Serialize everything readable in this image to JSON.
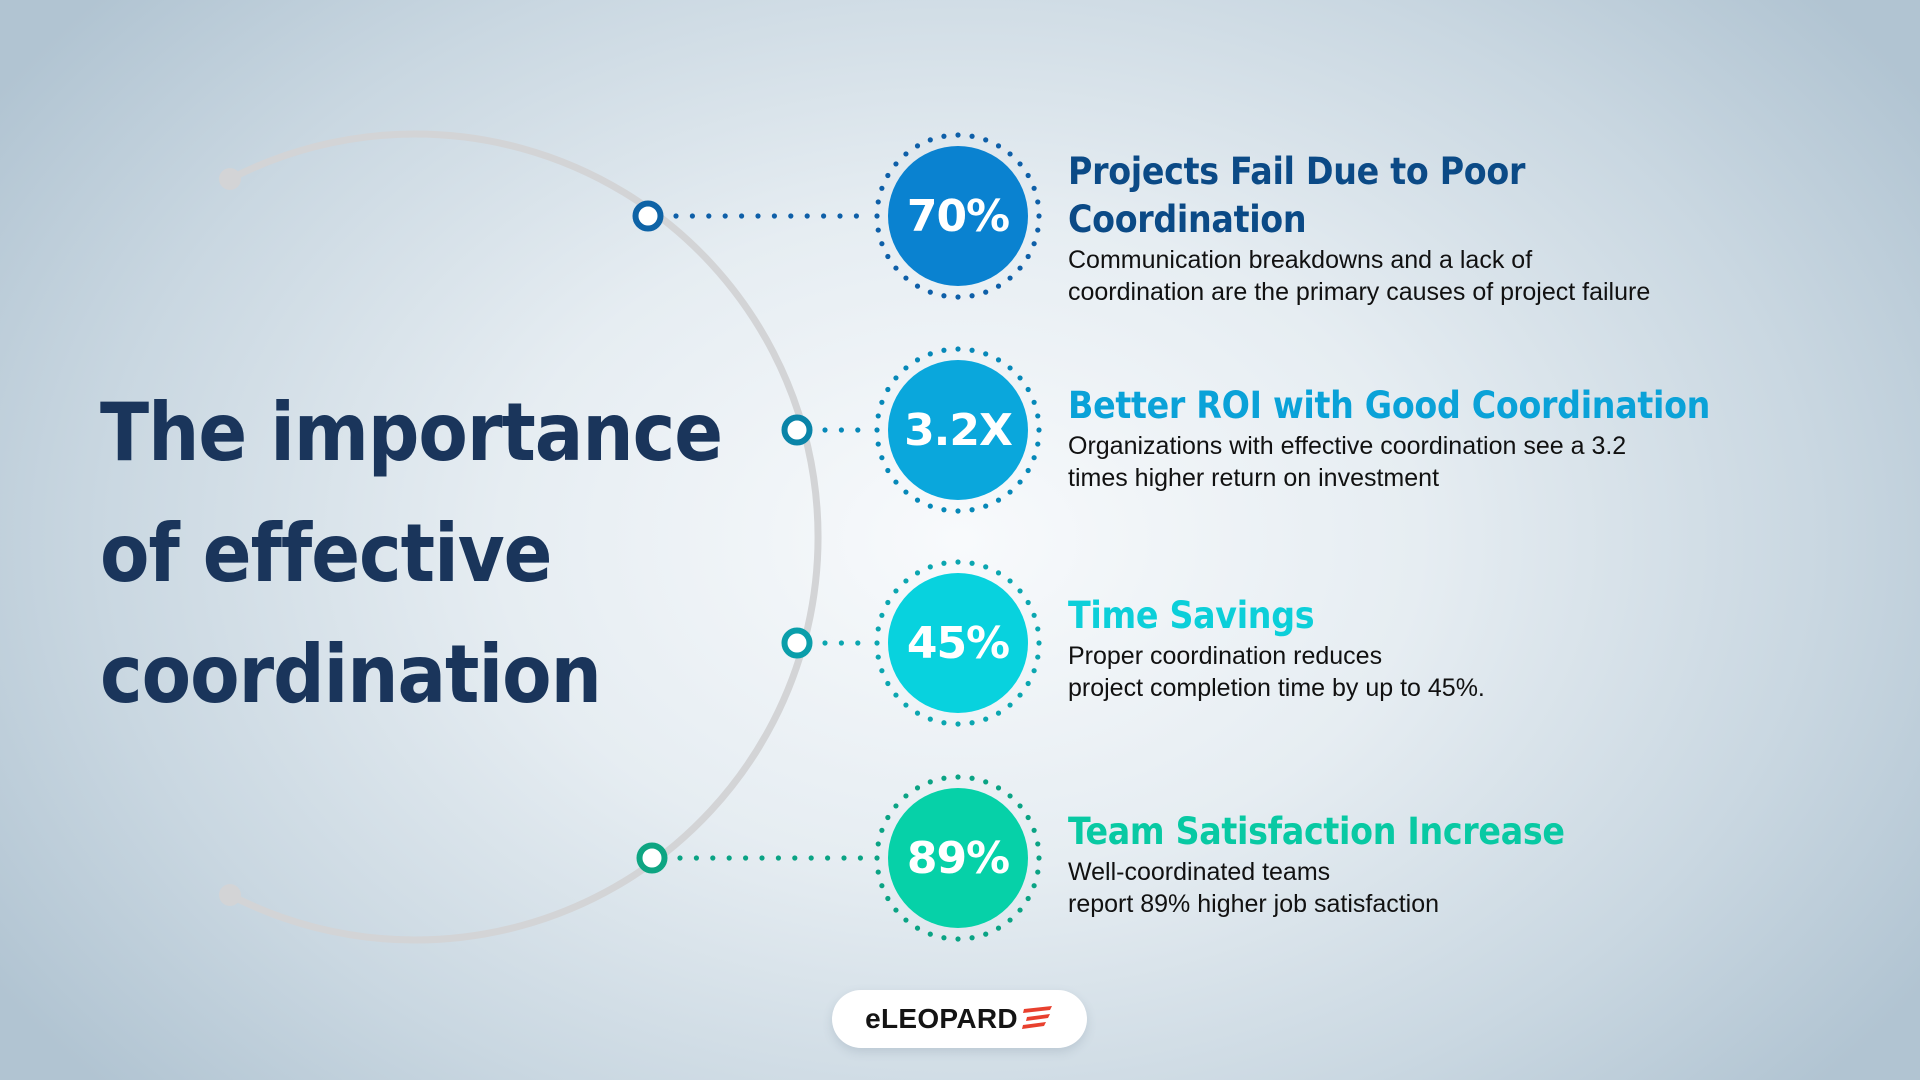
{
  "title": {
    "lines": [
      "The importance",
      "of effective",
      "coordination"
    ],
    "color": "#1a355b"
  },
  "arc": {
    "color": "#d3d4d6"
  },
  "stats": [
    {
      "value": "70%",
      "heading_lines": [
        "Projects Fail Due to Poor",
        "Coordination"
      ],
      "body_lines": [
        "Communication breakdowns and a lack of",
        "coordination are the primary causes of project failure"
      ],
      "fill_color": "#0a82d0",
      "dot_color": "#0e5fa8",
      "node_color": "#0e63a6",
      "heading_color": "#0b4a86"
    },
    {
      "value": "3.2X",
      "heading_lines": [
        "Better ROI with Good Coordination"
      ],
      "body_lines": [
        "Organizations with effective coordination see a 3.2",
        "times higher return on investment"
      ],
      "fill_color": "#0aa7dc",
      "dot_color": "#0688b8",
      "node_color": "#0a84a8",
      "heading_color": "#0aa2d8"
    },
    {
      "value": "45%",
      "heading_lines": [
        "Time Savings"
      ],
      "body_lines": [
        "Proper coordination reduces",
        "project completion time by up to 45%."
      ],
      "fill_color": "#08d2de",
      "dot_color": "#0ba6b0",
      "node_color": "#0a9eaa",
      "heading_color": "#0ccfd9"
    },
    {
      "value": "89%",
      "heading_lines": [
        "Team Satisfaction Increase"
      ],
      "body_lines": [
        "Well-coordinated teams",
        "report 89% higher job satisfaction"
      ],
      "fill_color": "#06d1a8",
      "dot_color": "#0aa384",
      "node_color": "#0ea582",
      "heading_color": "#08c9a3"
    }
  ],
  "logo": {
    "text": "eLEOPARD",
    "accent_color": "#e8402e"
  }
}
